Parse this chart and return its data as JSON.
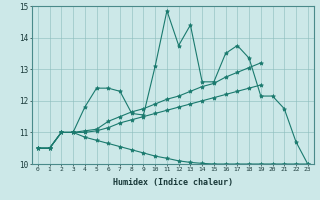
{
  "xlabel": "Humidex (Indice chaleur)",
  "background_color": "#cce8e8",
  "line_color": "#1a7a6e",
  "xlim": [
    -0.5,
    23.5
  ],
  "ylim": [
    10,
    15
  ],
  "yticks": [
    10,
    11,
    12,
    13,
    14,
    15
  ],
  "xticks": [
    0,
    1,
    2,
    3,
    4,
    5,
    6,
    7,
    8,
    9,
    10,
    11,
    12,
    13,
    14,
    15,
    16,
    17,
    18,
    19,
    20,
    21,
    22,
    23
  ],
  "series": [
    {
      "x": [
        0,
        1,
        2,
        3,
        4,
        5,
        6,
        7,
        8,
        9,
        10,
        11,
        12,
        13,
        14,
        15,
        16,
        17,
        18,
        19,
        20,
        21,
        22,
        23
      ],
      "y": [
        10.5,
        10.5,
        11.0,
        11.0,
        11.8,
        12.4,
        12.4,
        12.3,
        11.6,
        11.55,
        13.1,
        14.85,
        13.75,
        14.4,
        12.6,
        12.6,
        13.5,
        13.75,
        13.35,
        12.15,
        12.15,
        11.75,
        10.7,
        10.0
      ]
    },
    {
      "x": [
        0,
        1,
        2,
        3,
        4,
        5,
        6,
        7,
        8,
        9,
        10,
        11,
        12,
        13,
        14,
        15,
        16,
        17,
        18,
        19
      ],
      "y": [
        10.5,
        10.5,
        11.0,
        11.0,
        11.05,
        11.1,
        11.35,
        11.5,
        11.65,
        11.75,
        11.9,
        12.05,
        12.15,
        12.3,
        12.45,
        12.55,
        12.75,
        12.9,
        13.05,
        13.2
      ]
    },
    {
      "x": [
        0,
        1,
        2,
        3,
        4,
        5,
        6,
        7,
        8,
        9,
        10,
        11,
        12,
        13,
        14,
        15,
        16,
        17,
        18,
        19
      ],
      "y": [
        10.5,
        10.5,
        11.0,
        11.0,
        11.0,
        11.05,
        11.15,
        11.3,
        11.4,
        11.5,
        11.6,
        11.7,
        11.8,
        11.9,
        12.0,
        12.1,
        12.2,
        12.3,
        12.4,
        12.5
      ]
    },
    {
      "x": [
        0,
        1,
        2,
        3,
        4,
        5,
        6,
        7,
        8,
        9,
        10,
        11,
        12,
        13,
        14,
        15,
        16,
        17,
        18,
        19,
        20,
        21,
        22,
        23
      ],
      "y": [
        10.5,
        10.5,
        11.0,
        11.0,
        10.85,
        10.75,
        10.65,
        10.55,
        10.45,
        10.35,
        10.25,
        10.18,
        10.1,
        10.05,
        10.02,
        10.0,
        10.0,
        10.0,
        10.0,
        10.0,
        10.0,
        10.0,
        10.0,
        10.0
      ]
    }
  ]
}
